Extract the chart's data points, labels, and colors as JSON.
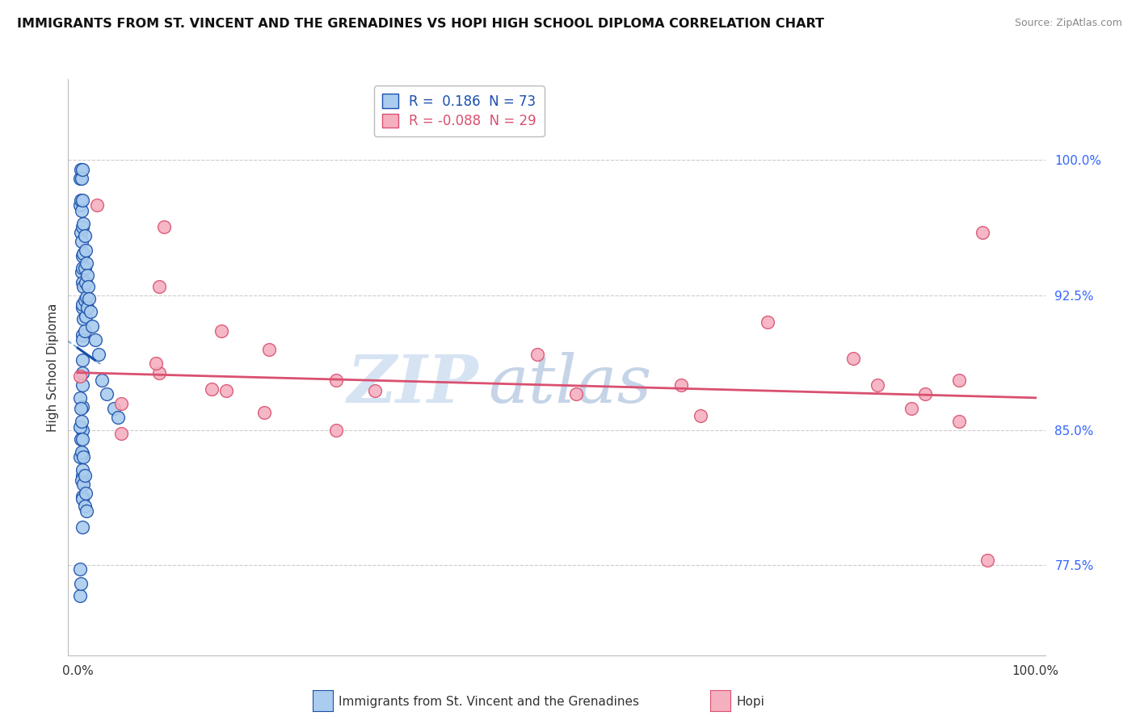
{
  "title": "IMMIGRANTS FROM ST. VINCENT AND THE GRENADINES VS HOPI HIGH SCHOOL DIPLOMA CORRELATION CHART",
  "source": "Source: ZipAtlas.com",
  "ylabel": "High School Diploma",
  "y_tick_labels": [
    "77.5%",
    "85.0%",
    "92.5%",
    "100.0%"
  ],
  "y_tick_values": [
    0.775,
    0.85,
    0.925,
    1.0
  ],
  "x_lim": [
    -0.01,
    1.01
  ],
  "y_lim": [
    0.725,
    1.045
  ],
  "legend1_r": " 0.186",
  "legend1_n": "73",
  "legend2_r": "-0.088",
  "legend2_n": "29",
  "blue_color": "#aaccee",
  "pink_color": "#f5b0c0",
  "blue_line_color": "#1a4faa",
  "pink_line_color": "#d95070",
  "blue_dashed_color": "#6699cc",
  "watermark_zip": "ZIP",
  "watermark_atlas": "atlas",
  "blue_dots_x": [
    0.002,
    0.002,
    0.003,
    0.003,
    0.003,
    0.004,
    0.004,
    0.004,
    0.004,
    0.005,
    0.005,
    0.005,
    0.005,
    0.005,
    0.005,
    0.005,
    0.005,
    0.005,
    0.005,
    0.005,
    0.005,
    0.005,
    0.005,
    0.005,
    0.005,
    0.005,
    0.005,
    0.006,
    0.006,
    0.006,
    0.006,
    0.007,
    0.007,
    0.007,
    0.007,
    0.008,
    0.008,
    0.008,
    0.009,
    0.009,
    0.01,
    0.01,
    0.011,
    0.012,
    0.013,
    0.015,
    0.018,
    0.022,
    0.025,
    0.03,
    0.038,
    0.042,
    0.002,
    0.002,
    0.002,
    0.003,
    0.003,
    0.004,
    0.004,
    0.004,
    0.005,
    0.005,
    0.005,
    0.005,
    0.006,
    0.006,
    0.007,
    0.007,
    0.008,
    0.009,
    0.002,
    0.002,
    0.003
  ],
  "blue_dots_y": [
    0.99,
    0.975,
    0.995,
    0.978,
    0.96,
    0.99,
    0.972,
    0.955,
    0.938,
    0.995,
    0.978,
    0.963,
    0.947,
    0.932,
    0.918,
    0.903,
    0.889,
    0.875,
    0.863,
    0.85,
    0.837,
    0.825,
    0.813,
    0.94,
    0.92,
    0.9,
    0.882,
    0.965,
    0.948,
    0.93,
    0.912,
    0.958,
    0.94,
    0.922,
    0.905,
    0.95,
    0.932,
    0.913,
    0.943,
    0.924,
    0.936,
    0.918,
    0.93,
    0.923,
    0.916,
    0.908,
    0.9,
    0.892,
    0.878,
    0.87,
    0.862,
    0.857,
    0.868,
    0.852,
    0.835,
    0.862,
    0.845,
    0.855,
    0.838,
    0.822,
    0.845,
    0.828,
    0.812,
    0.796,
    0.835,
    0.82,
    0.825,
    0.808,
    0.815,
    0.805,
    0.773,
    0.758,
    0.765
  ],
  "pink_dots_x": [
    0.02,
    0.09,
    0.085,
    0.15,
    0.085,
    0.14,
    0.2,
    0.27,
    0.155,
    0.195,
    0.27,
    0.31,
    0.48,
    0.52,
    0.63,
    0.65,
    0.72,
    0.81,
    0.835,
    0.87,
    0.885,
    0.92,
    0.92,
    0.945,
    0.95,
    0.002,
    0.045,
    0.045,
    0.082
  ],
  "pink_dots_y": [
    0.975,
    0.963,
    0.93,
    0.905,
    0.882,
    0.873,
    0.895,
    0.878,
    0.872,
    0.86,
    0.85,
    0.872,
    0.892,
    0.87,
    0.875,
    0.858,
    0.91,
    0.89,
    0.875,
    0.862,
    0.87,
    0.878,
    0.855,
    0.96,
    0.778,
    0.88,
    0.865,
    0.848,
    0.887
  ],
  "blue_line_x0": -0.005,
  "blue_line_x1": 0.055,
  "pink_line_x0": 0.0,
  "pink_line_x1": 1.0,
  "pink_line_y0": 0.882,
  "pink_line_y1": 0.868
}
